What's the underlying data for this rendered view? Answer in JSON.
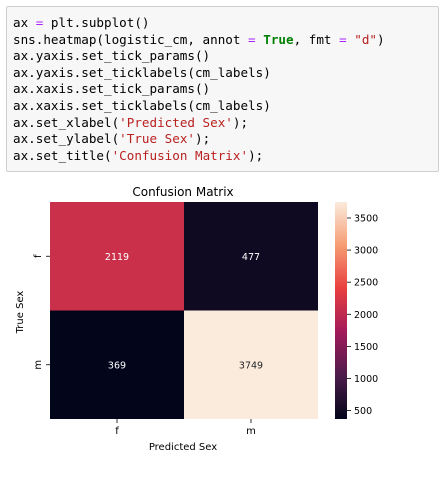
{
  "code_cell": {
    "lines": [
      [
        {
          "t": "ax "
        },
        {
          "t": "=",
          "k": "op"
        },
        {
          "t": " plt.subplot()"
        }
      ],
      [
        {
          "t": "sns.heatmap(logistic_cm, annot "
        },
        {
          "t": "=",
          "k": "op"
        },
        {
          "t": " "
        },
        {
          "t": "True",
          "k": "kw"
        },
        {
          "t": ", fmt "
        },
        {
          "t": "=",
          "k": "op"
        },
        {
          "t": " "
        },
        {
          "t": "\"d\"",
          "k": "str"
        },
        {
          "t": ")"
        }
      ],
      [
        {
          "t": "ax.yaxis.set_tick_params()"
        }
      ],
      [
        {
          "t": "ax.yaxis.set_ticklabels(cm_labels)"
        }
      ],
      [
        {
          "t": "ax.xaxis.set_tick_params()"
        }
      ],
      [
        {
          "t": "ax.xaxis.set_ticklabels(cm_labels)"
        }
      ],
      [
        {
          "t": "ax.set_xlabel("
        },
        {
          "t": "'Predicted Sex'",
          "k": "str"
        },
        {
          "t": ");"
        }
      ],
      [
        {
          "t": "ax.set_ylabel("
        },
        {
          "t": "'True Sex'",
          "k": "str"
        },
        {
          "t": ");"
        }
      ],
      [
        {
          "t": "ax.set_title("
        },
        {
          "t": "'Confusion Matrix'",
          "k": "str"
        },
        {
          "t": ");"
        }
      ]
    ]
  },
  "chart_data": {
    "type": "heatmap",
    "title": "Confusion Matrix",
    "xlabel": "Predicted Sex",
    "ylabel": "True Sex",
    "x_categories": [
      "f",
      "m"
    ],
    "y_categories": [
      "f",
      "m"
    ],
    "values": [
      [
        2119,
        477
      ],
      [
        369,
        3749
      ]
    ],
    "colorbar": {
      "ticks": [
        500,
        1000,
        1500,
        2000,
        2500,
        3000,
        3500
      ],
      "vmin": 369,
      "vmax": 3749
    },
    "colormap_stops": [
      "#03051a",
      "#4c1d4b",
      "#a11a5b",
      "#e83f3f",
      "#f69c73",
      "#faebdd"
    ],
    "text_light": "#ffffff",
    "text_dark": "#262626"
  }
}
